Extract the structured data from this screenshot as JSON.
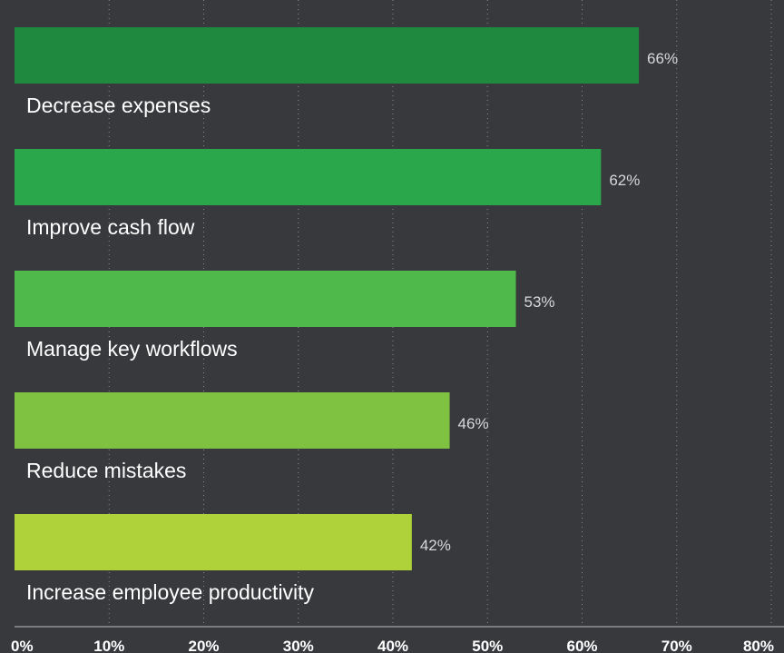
{
  "chart_data": {
    "type": "bar",
    "orientation": "horizontal",
    "categories": [
      "Decrease expenses",
      "Improve cash flow",
      "Manage key workflows",
      "Reduce mistakes",
      "Increase employee productivity"
    ],
    "values": [
      66,
      62,
      53,
      46,
      42
    ],
    "value_labels": [
      "66%",
      "62%",
      "53%",
      "46%",
      "42%"
    ],
    "colors": [
      "#208940",
      "#2aa64b",
      "#4fba4b",
      "#7fc241",
      "#afd23a"
    ],
    "xlim": [
      0,
      80
    ],
    "x_ticks": [
      0,
      10,
      20,
      30,
      40,
      50,
      60,
      70,
      80
    ],
    "x_tick_labels": [
      "0%",
      "10%",
      "20%",
      "30%",
      "40%",
      "50%",
      "60%",
      "70%",
      "80%"
    ],
    "grid": true,
    "background": "#38393d"
  }
}
